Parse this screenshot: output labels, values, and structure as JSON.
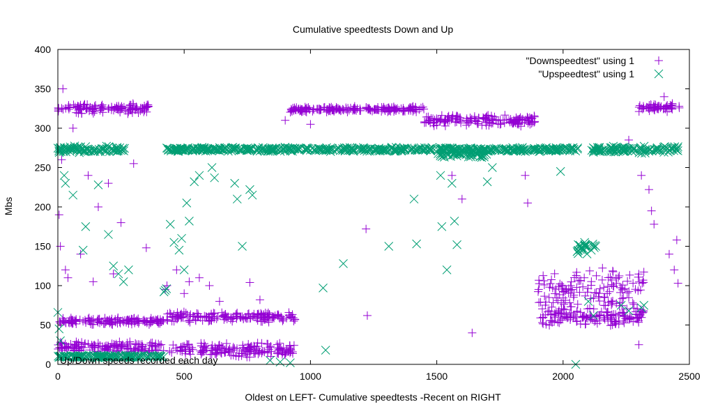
{
  "chart_data": {
    "type": "scatter",
    "title": "Cumulative speedtests Down and Up",
    "xlabel": "Oldest on LEFT- Cumulative speedtests -Recent on RIGHT",
    "ylabel": "Mbs",
    "xlim": [
      0,
      2500
    ],
    "ylim": [
      0,
      400
    ],
    "x_ticks": [
      0,
      500,
      1000,
      1500,
      2000,
      2500
    ],
    "y_ticks": [
      0,
      50,
      100,
      150,
      200,
      250,
      300,
      350,
      400
    ],
    "grid": false,
    "legend_position": "top-right",
    "annotation": "Up/Down speeds recorded each day",
    "colors": {
      "down": "#9400d3",
      "up": "#009e73"
    },
    "series": [
      {
        "name": "\"Downspeedtest\" using 1",
        "marker": "plus",
        "color": "#9400d3",
        "segments": [
          {
            "x": [
              0,
              360
            ],
            "y": 325,
            "jitter": 8
          },
          {
            "x": [
              920,
              1450
            ],
            "y": 324,
            "jitter": 4
          },
          {
            "x": [
              1450,
              1900
            ],
            "y": 310,
            "jitter": 8
          },
          {
            "x": [
              2300,
              2460
            ],
            "y": 326,
            "jitter": 6
          },
          {
            "x": [
              0,
              420
            ],
            "y": 55,
            "jitter": 5
          },
          {
            "x": [
              430,
              940
            ],
            "y": 60,
            "jitter": 7
          },
          {
            "x": [
              440,
              940
            ],
            "y": 18,
            "jitter": 10
          },
          {
            "x": [
              0,
              420
            ],
            "y": 22,
            "jitter": 8
          },
          {
            "x": [
              1900,
              2320
            ],
            "y": 60,
            "jitter": 12
          },
          {
            "x": [
              1900,
              2320
            ],
            "y": 95,
            "jitter": 30
          }
        ],
        "points": [
          [
            20,
            350
          ],
          [
            60,
            300
          ],
          [
            120,
            240
          ],
          [
            160,
            200
          ],
          [
            200,
            230
          ],
          [
            250,
            180
          ],
          [
            300,
            255
          ],
          [
            350,
            148
          ],
          [
            10,
            150
          ],
          [
            30,
            120
          ],
          [
            5,
            190
          ],
          [
            15,
            260
          ],
          [
            40,
            110
          ],
          [
            90,
            140
          ],
          [
            140,
            105
          ],
          [
            220,
            115
          ],
          [
            900,
            310
          ],
          [
            1000,
            305
          ],
          [
            1220,
            172
          ],
          [
            1225,
            62
          ],
          [
            1640,
            40
          ],
          [
            1560,
            240
          ],
          [
            1600,
            210
          ],
          [
            1850,
            240
          ],
          [
            1860,
            205
          ],
          [
            2310,
            240
          ],
          [
            2340,
            222
          ],
          [
            2350,
            195
          ],
          [
            2360,
            178
          ],
          [
            2400,
            340
          ],
          [
            2420,
            140
          ],
          [
            2440,
            120
          ],
          [
            2450,
            158
          ],
          [
            2455,
            103
          ],
          [
            2300,
            25
          ],
          [
            2260,
            285
          ],
          [
            470,
            120
          ],
          [
            500,
            90
          ],
          [
            520,
            105
          ],
          [
            560,
            110
          ],
          [
            600,
            100
          ],
          [
            640,
            80
          ],
          [
            760,
            104
          ],
          [
            800,
            82
          ],
          [
            425,
            95
          ],
          [
            432,
            100
          ]
        ]
      },
      {
        "name": "\"Upspeedtest\" using 1",
        "marker": "cross",
        "color": "#009e73",
        "segments": [
          {
            "x": [
              0,
              270
            ],
            "y": 273,
            "jitter": 5
          },
          {
            "x": [
              430,
              2060
            ],
            "y": 273,
            "jitter": 3
          },
          {
            "x": [
              1500,
              1700
            ],
            "y": 268,
            "jitter": 6
          },
          {
            "x": [
              2110,
              2460
            ],
            "y": 273,
            "jitter": 5
          },
          {
            "x": [
              0,
              420
            ],
            "y": 10,
            "jitter": 2
          },
          {
            "x": [
              2050,
              2130
            ],
            "y": 148,
            "jitter": 10
          }
        ],
        "points": [
          [
            0,
            66
          ],
          [
            5,
            45
          ],
          [
            10,
            30
          ],
          [
            25,
            240
          ],
          [
            30,
            230
          ],
          [
            60,
            215
          ],
          [
            100,
            145
          ],
          [
            110,
            175
          ],
          [
            200,
            165
          ],
          [
            220,
            125
          ],
          [
            240,
            115
          ],
          [
            260,
            105
          ],
          [
            160,
            228
          ],
          [
            280,
            120
          ],
          [
            420,
            92
          ],
          [
            425,
            94
          ],
          [
            430,
            96
          ],
          [
            445,
            178
          ],
          [
            460,
            155
          ],
          [
            480,
            145
          ],
          [
            490,
            160
          ],
          [
            500,
            120
          ],
          [
            510,
            205
          ],
          [
            520,
            182
          ],
          [
            540,
            232
          ],
          [
            560,
            240
          ],
          [
            610,
            250
          ],
          [
            620,
            237
          ],
          [
            700,
            230
          ],
          [
            710,
            210
          ],
          [
            730,
            150
          ],
          [
            760,
            222
          ],
          [
            770,
            215
          ],
          [
            840,
            5
          ],
          [
            880,
            3
          ],
          [
            920,
            2
          ],
          [
            1050,
            97
          ],
          [
            1060,
            18
          ],
          [
            1130,
            128
          ],
          [
            1310,
            150
          ],
          [
            1410,
            210
          ],
          [
            1420,
            153
          ],
          [
            1515,
            240
          ],
          [
            1520,
            175
          ],
          [
            1540,
            120
          ],
          [
            1560,
            230
          ],
          [
            1570,
            182
          ],
          [
            1580,
            152
          ],
          [
            1700,
            232
          ],
          [
            1720,
            250
          ],
          [
            1990,
            245
          ],
          [
            2050,
            0
          ],
          [
            2100,
            80
          ],
          [
            2120,
            62
          ],
          [
            2230,
            75
          ],
          [
            2260,
            68
          ],
          [
            2310,
            72
          ],
          [
            2320,
            75
          ]
        ]
      }
    ]
  }
}
